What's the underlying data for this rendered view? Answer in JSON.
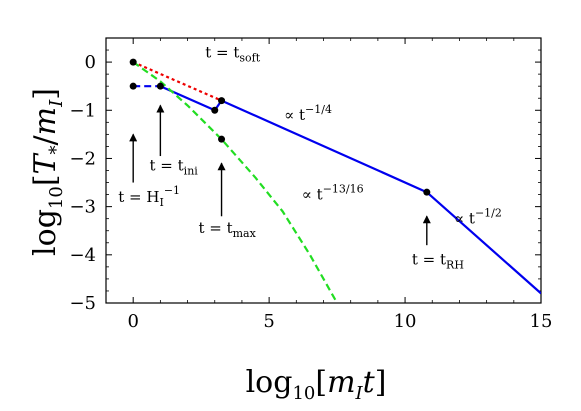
{
  "chart_data": {
    "type": "line",
    "xlabel": "log10[m_I t]",
    "ylabel": "log10[T_*/m_I]",
    "xlim": [
      -1,
      15
    ],
    "ylim": [
      -5,
      0.5
    ],
    "x_ticks": [
      0,
      5,
      10,
      15
    ],
    "y_ticks": [
      0,
      -1,
      -2,
      -3,
      -4,
      -5
    ],
    "x_tick_labels": [
      "0",
      "5",
      "10",
      "15"
    ],
    "y_tick_labels": [
      "0",
      "−1",
      "−2",
      "−3",
      "−4",
      "−5"
    ],
    "grid": false,
    "legend": "none",
    "series": [
      {
        "color": "#0000ee",
        "style": "solid",
        "points": [
          [
            1,
            -0.5
          ],
          [
            3,
            -1.0
          ],
          [
            3.25,
            -0.8
          ],
          [
            10.8,
            -2.7
          ],
          [
            15,
            -4.8
          ]
        ]
      },
      {
        "color": "#0000ee",
        "style": "dashed",
        "points": [
          [
            0,
            -0.5
          ],
          [
            1,
            -0.5
          ]
        ]
      },
      {
        "color": "#ee0000",
        "style": "dotted",
        "points": [
          [
            0,
            0
          ],
          [
            3.25,
            -0.8
          ]
        ]
      },
      {
        "color": "#22dd22",
        "style": "dashed",
        "points": [
          [
            0,
            0
          ],
          [
            1,
            -0.4
          ],
          [
            2,
            -0.9
          ],
          [
            3.25,
            -1.6
          ],
          [
            4.5,
            -2.4
          ],
          [
            5.5,
            -3.1
          ],
          [
            6.5,
            -4.0
          ],
          [
            7.5,
            -5.0
          ]
        ]
      }
    ],
    "markers": [
      [
        0,
        0
      ],
      [
        0,
        -0.5
      ],
      [
        1,
        -0.5
      ],
      [
        3,
        -1.0
      ],
      [
        3.25,
        -0.8
      ],
      [
        3.25,
        -1.6
      ],
      [
        10.8,
        -2.7
      ]
    ],
    "arrows": [
      {
        "from": [
          0,
          -2.5
        ],
        "to": [
          0,
          -1.5
        ]
      },
      {
        "from": [
          1,
          -1.95
        ],
        "to": [
          1,
          -0.9
        ]
      },
      {
        "from": [
          3.25,
          -3.2
        ],
        "to": [
          3.25,
          -2.1
        ]
      },
      {
        "from": [
          10.8,
          -3.8
        ],
        "to": [
          10.8,
          -3.2
        ]
      }
    ],
    "annotations": [
      {
        "main": "t = H",
        "sub": "I",
        "sup": "−1",
        "x": -0.55,
        "y": -2.9
      },
      {
        "main": "t = t",
        "sub": "ini",
        "x": 0.6,
        "y": -2.25
      },
      {
        "main": "t = t",
        "sub": "soft",
        "x": 2.65,
        "y": 0.1
      },
      {
        "main": "t = t",
        "sub": "max",
        "x": 2.4,
        "y": -3.55
      },
      {
        "main": "t = t",
        "sub": "RH",
        "x": 10.25,
        "y": -4.2
      },
      {
        "main": "∝ t",
        "sup": "−1/4",
        "x": 5.55,
        "y": -1.2
      },
      {
        "main": "∝ t",
        "sup": "−13/16",
        "x": 6.2,
        "y": -2.85
      },
      {
        "main": "∝ t",
        "sup": "−1/2",
        "x": 11.8,
        "y": -3.35
      }
    ]
  }
}
